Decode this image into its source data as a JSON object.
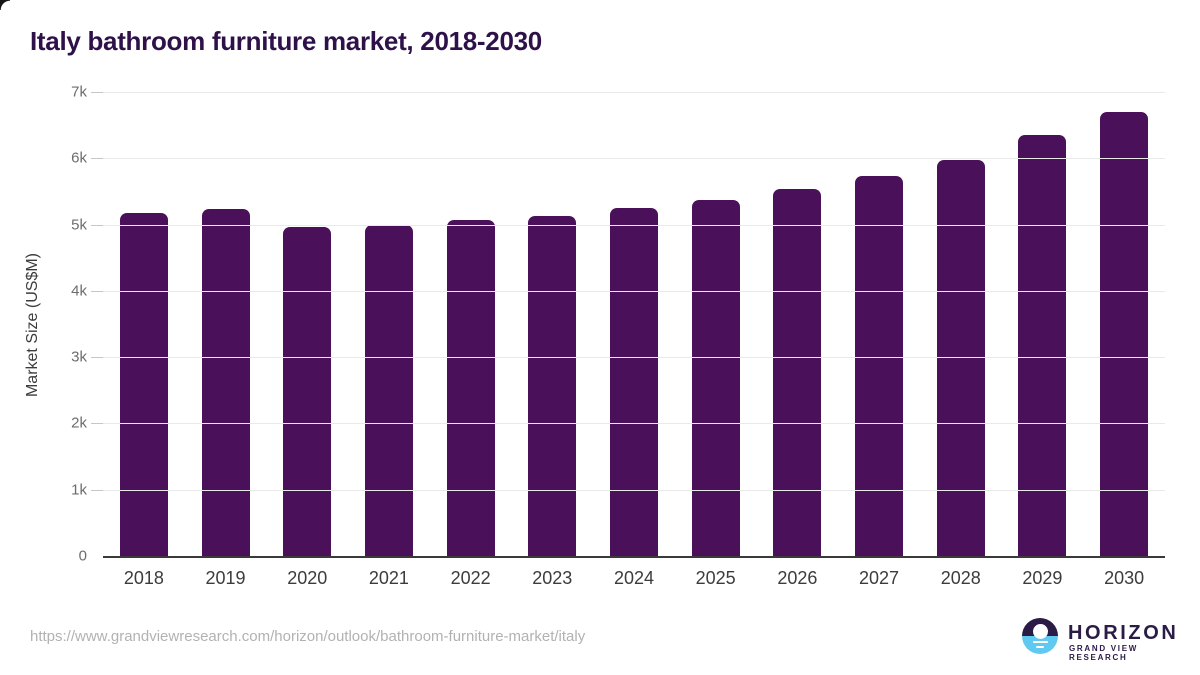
{
  "chart_data": {
    "type": "bar",
    "title": "Italy bathroom furniture market, 2018-2030",
    "xlabel": "",
    "ylabel": "Market Size (US$M)",
    "categories": [
      "2018",
      "2019",
      "2020",
      "2021",
      "2022",
      "2023",
      "2024",
      "2025",
      "2026",
      "2027",
      "2028",
      "2029",
      "2030"
    ],
    "values": [
      5170,
      5240,
      4960,
      4990,
      5070,
      5130,
      5250,
      5370,
      5530,
      5730,
      5980,
      6350,
      6700
    ],
    "ylim": [
      0,
      7000
    ],
    "yticks": [
      0,
      1000,
      2000,
      3000,
      4000,
      5000,
      6000,
      7000
    ],
    "ytick_labels": [
      "0",
      "1k",
      "2k",
      "3k",
      "4k",
      "5k",
      "6k",
      "7k"
    ],
    "grid": "horizontal",
    "legend": "none",
    "bar_color": "#4a1059"
  },
  "footer": {
    "url": "https://www.grandviewresearch.com/horizon/outlook/bathroom-furniture-market/italy",
    "logo_name": "HORIZON",
    "logo_subtitle": "GRAND VIEW RESEARCH"
  },
  "colors": {
    "bar": "#4a1059",
    "title": "#2e1149",
    "axis_label": "#3c3c3c",
    "grid": "#e9e9e9",
    "ytick_label": "#6d6d6d",
    "url_text": "#b2b2b2",
    "logo_purple": "#2b1b47",
    "logo_blue": "#5fc9f1"
  }
}
